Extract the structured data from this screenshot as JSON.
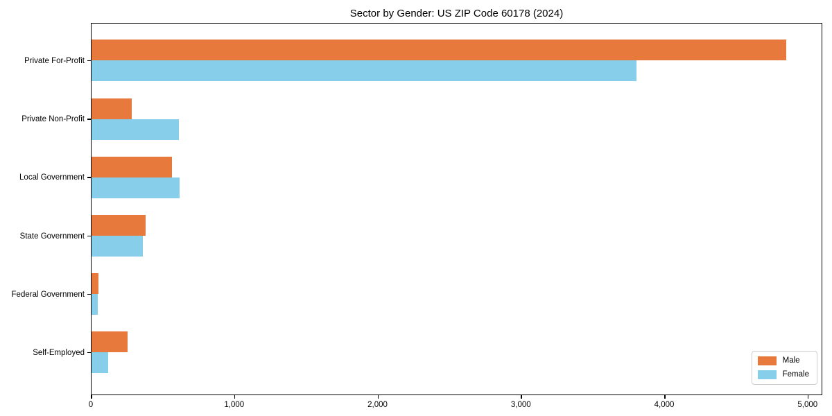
{
  "title": "Sector by Gender: US ZIP Code 60178 (2024)",
  "chart_data": {
    "type": "bar",
    "orientation": "horizontal",
    "title": "Sector by Gender: US ZIP Code 60178 (2024)",
    "categories": [
      "Private For-Profit",
      "Private Non-Profit",
      "Local Government",
      "State Government",
      "Federal Government",
      "Self-Employed"
    ],
    "series": [
      {
        "name": "Male",
        "color": "#e8793c",
        "values": [
          4846,
          281,
          563,
          376,
          47,
          252
        ]
      },
      {
        "name": "Female",
        "color": "#87ceeb",
        "values": [
          3800,
          611,
          614,
          357,
          42,
          116
        ]
      }
    ],
    "xlabel": "",
    "ylabel": "",
    "xlim": [
      0,
      5093
    ],
    "xticks": [
      0,
      1000,
      2000,
      3000,
      4000,
      5000
    ],
    "xtick_labels": [
      "0",
      "1,000",
      "2,000",
      "3,000",
      "4,000",
      "5,000"
    ],
    "grid": false,
    "legend": {
      "position": "lower right",
      "entries": [
        {
          "label": "Male",
          "color": "#e8793c"
        },
        {
          "label": "Female",
          "color": "#87ceeb"
        }
      ]
    }
  }
}
